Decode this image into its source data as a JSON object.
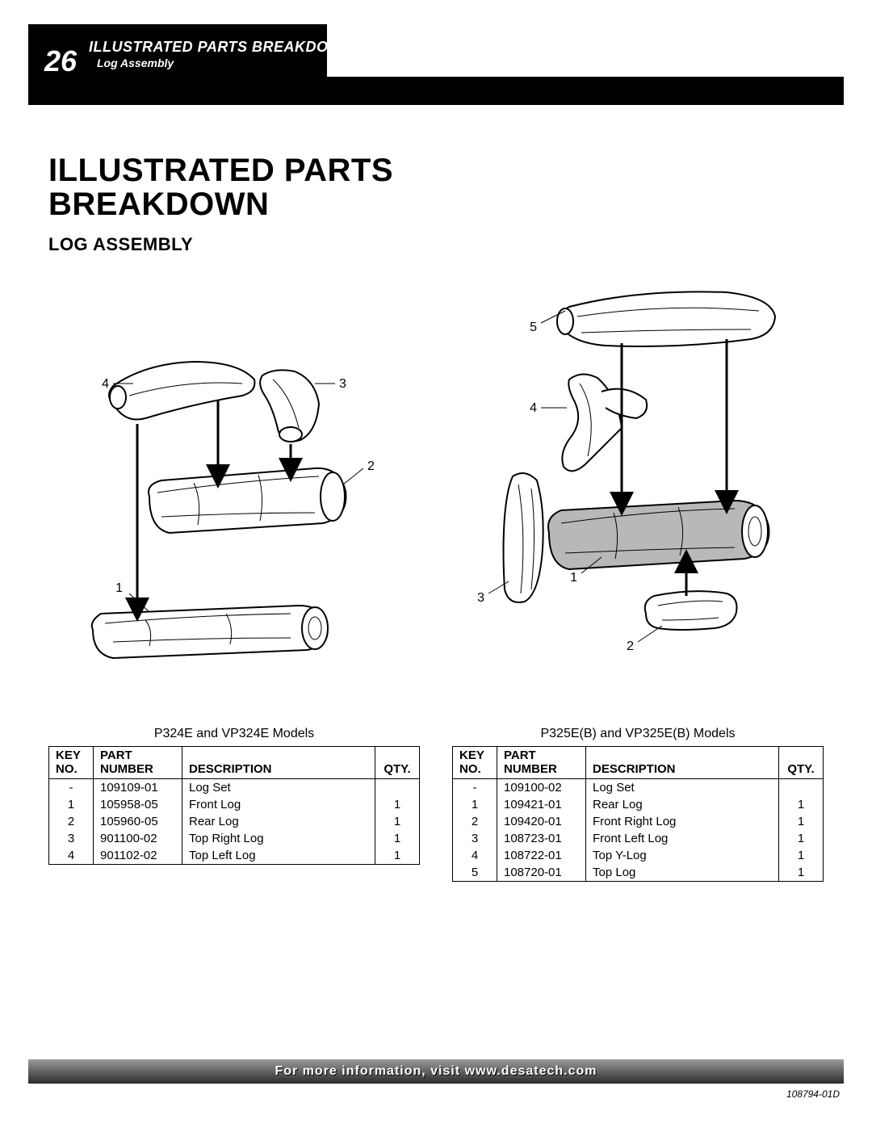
{
  "page_number": "26",
  "header_title": "ILLUSTRATED PARTS BREAKDOWN",
  "header_sub": "Log Assembly",
  "title_line1": "ILLUSTRATED PARTS",
  "title_line2": "BREAKDOWN",
  "subtitle": "LOG ASSEMBLY",
  "footer": "For more information, visit www.desatech.com",
  "doc_id": "108794-01D",
  "table_headers": {
    "key": "KEY\nNO.",
    "part": "PART\nNUMBER",
    "desc": "DESCRIPTION",
    "qty": "QTY."
  },
  "left_model": {
    "caption": "P324E and VP324E Models",
    "rows": [
      {
        "key": "-",
        "num": "109109-01",
        "desc": "Log Set",
        "qty": ""
      },
      {
        "key": "1",
        "num": "105958-05",
        "desc": "Front Log",
        "qty": "1"
      },
      {
        "key": "2",
        "num": "105960-05",
        "desc": "Rear Log",
        "qty": "1"
      },
      {
        "key": "3",
        "num": "901100-02",
        "desc": "Top Right Log",
        "qty": "1"
      },
      {
        "key": "4",
        "num": "901102-02",
        "desc": "Top Left Log",
        "qty": "1"
      }
    ],
    "diagram_labels": [
      "1",
      "2",
      "3",
      "4"
    ]
  },
  "right_model": {
    "caption": "P325E(B) and VP325E(B) Models",
    "rows": [
      {
        "key": "-",
        "num": "109100-02",
        "desc": "Log Set",
        "qty": ""
      },
      {
        "key": "1",
        "num": "109421-01",
        "desc": "Rear Log",
        "qty": "1"
      },
      {
        "key": "2",
        "num": "109420-01",
        "desc": "Front Right Log",
        "qty": "1"
      },
      {
        "key": "3",
        "num": "108723-01",
        "desc": "Front Left Log",
        "qty": "1"
      },
      {
        "key": "4",
        "num": "108722-01",
        "desc": "Top Y-Log",
        "qty": "1"
      },
      {
        "key": "5",
        "num": "108720-01",
        "desc": "Top Log",
        "qty": "1"
      }
    ],
    "diagram_labels": [
      "1",
      "2",
      "3",
      "4",
      "5"
    ]
  },
  "colors": {
    "black": "#000000",
    "white": "#ffffff",
    "grad_top": "#9a9a9a",
    "grad_bottom": "#2b2b2b",
    "log_shade": "#b8b8b8"
  }
}
